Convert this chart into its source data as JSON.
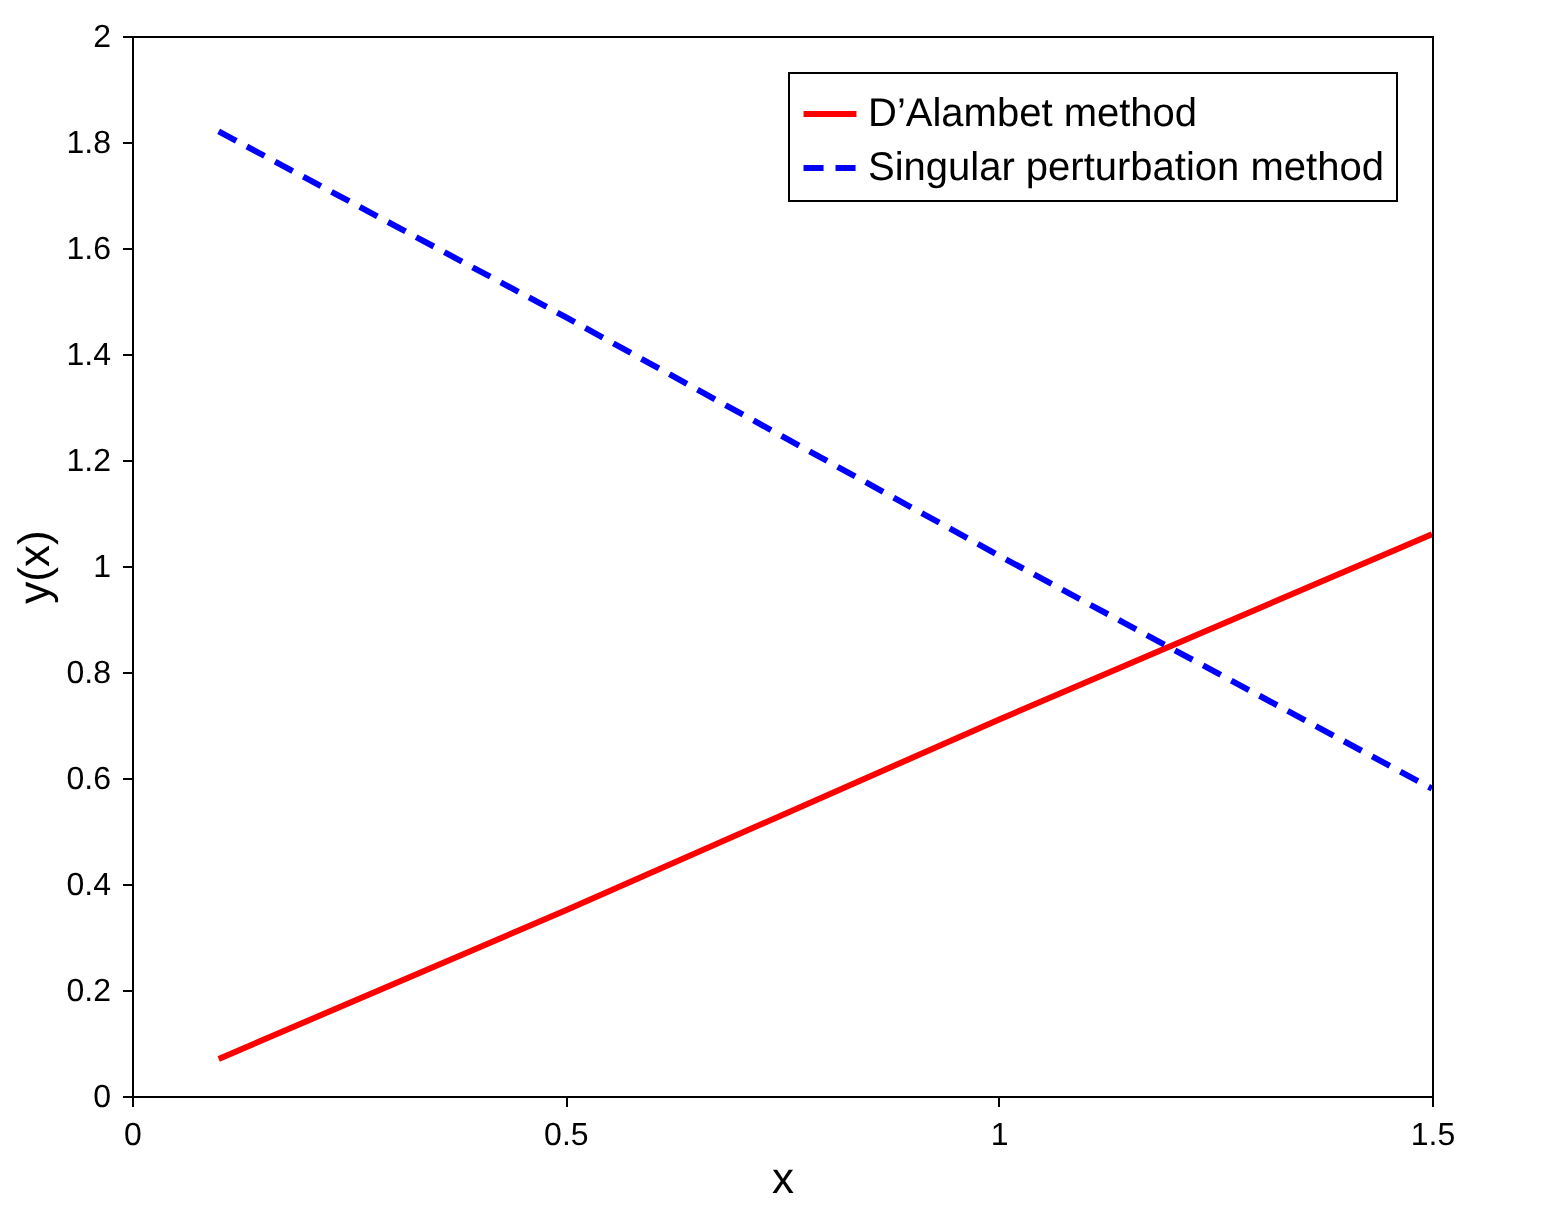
{
  "chart_data": {
    "type": "line",
    "xlabel": "x",
    "ylabel": "y(x)",
    "x": [
      0.1,
      0.5,
      1.0,
      1.5
    ],
    "series": [
      {
        "name": "D’Alambet method",
        "color": "#ff0000",
        "line_style": "solid",
        "values": [
          0.07,
          0.35,
          0.71,
          1.06
        ]
      },
      {
        "name": "Singular perturbation method",
        "color": "#0000ff",
        "line_style": "dashed",
        "values": [
          1.82,
          1.47,
          1.02,
          0.58
        ]
      }
    ],
    "xlim": [
      0,
      1.5
    ],
    "xticks": [
      0,
      0.5,
      1,
      1.5
    ],
    "ylim": [
      0,
      2
    ],
    "yticks": [
      0,
      0.2,
      0.4,
      0.6,
      0.8,
      1,
      1.2,
      1.4,
      1.6,
      1.8,
      2
    ],
    "grid": false,
    "legend": "top right",
    "marker": "none"
  }
}
